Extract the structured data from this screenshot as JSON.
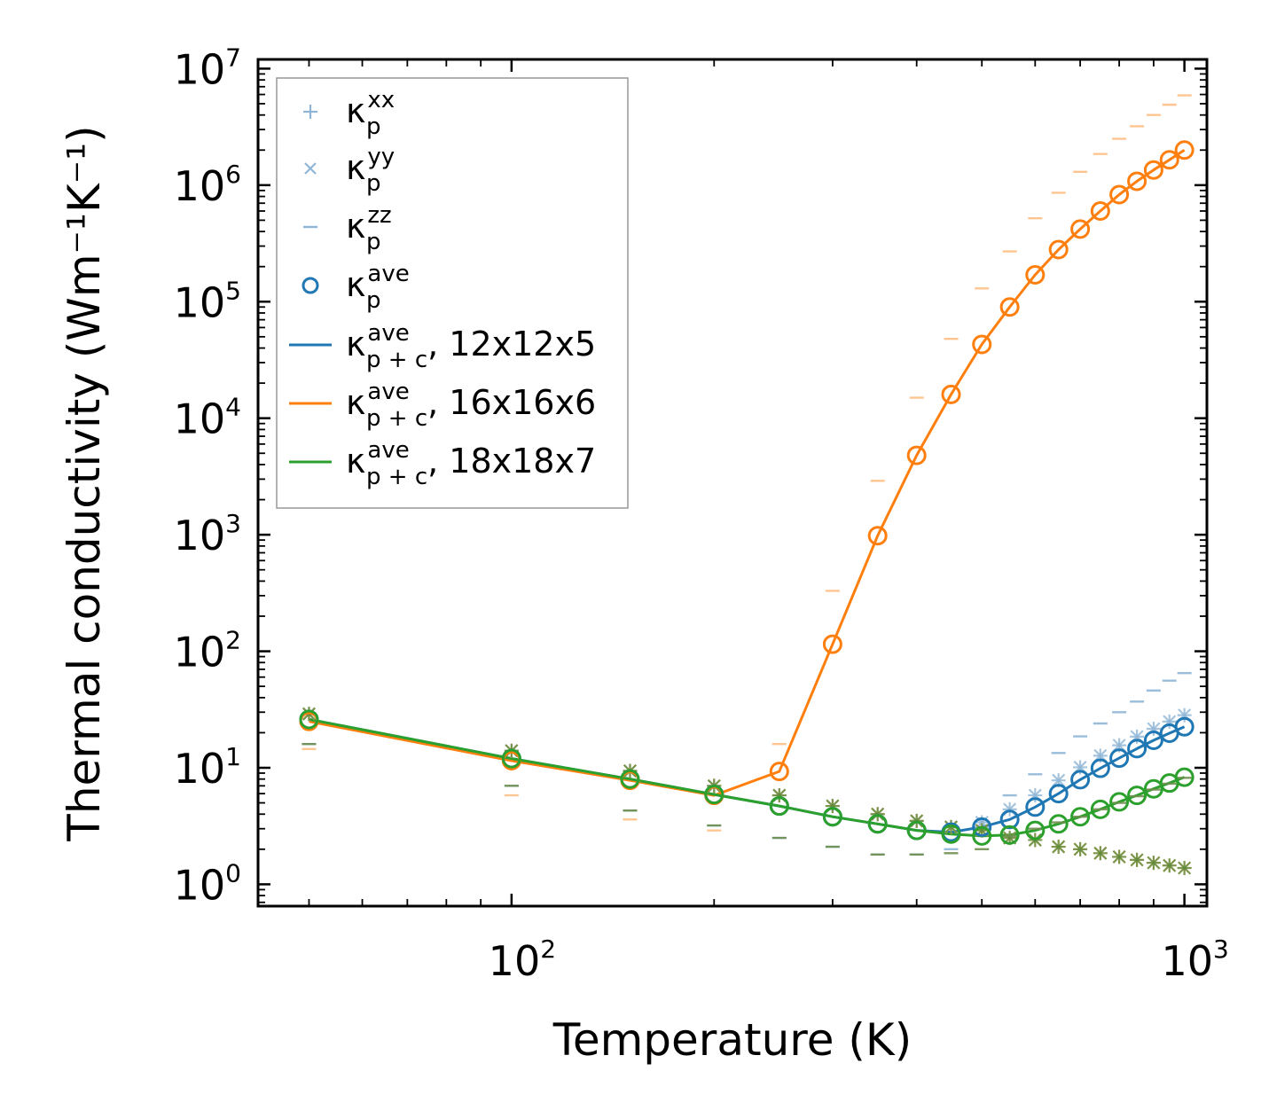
{
  "chart_data": {
    "type": "line",
    "title": "",
    "xlabel": "Temperature (K)",
    "ylabel": "Thermal conductivity (Wm⁻¹K⁻¹)",
    "xscale": "log",
    "yscale": "log",
    "xlim": [
      42,
      1080
    ],
    "ylim": [
      0.65,
      12000000
    ],
    "x_major_ticks": [
      {
        "value": 100,
        "label": "10",
        "exp": "2"
      },
      {
        "value": 1000,
        "label": "10",
        "exp": "3"
      }
    ],
    "y_major_ticks": [
      {
        "value": 1,
        "label": "10",
        "exp": "0"
      },
      {
        "value": 10,
        "label": "10",
        "exp": "1"
      },
      {
        "value": 100,
        "label": "10",
        "exp": "2"
      },
      {
        "value": 1000,
        "label": "10",
        "exp": "3"
      },
      {
        "value": 10000,
        "label": "10",
        "exp": "4"
      },
      {
        "value": 100000,
        "label": "10",
        "exp": "5"
      },
      {
        "value": 1000000,
        "label": "10",
        "exp": "6"
      },
      {
        "value": 10000000,
        "label": "10",
        "exp": "7"
      }
    ],
    "legend_position": "top-left",
    "legend": [
      {
        "marker": "plus",
        "color": "#8fb6d6",
        "kappa": "κ",
        "sub": "p",
        "sup": "xx",
        "suffix": ""
      },
      {
        "marker": "x",
        "color": "#8fb6d6",
        "kappa": "κ",
        "sub": "p",
        "sup": "yy",
        "suffix": ""
      },
      {
        "marker": "dash",
        "color": "#8fb6d6",
        "kappa": "κ",
        "sub": "p",
        "sup": "zz",
        "suffix": ""
      },
      {
        "marker": "circle",
        "color": "#1f77b4",
        "kappa": "κ",
        "sub": "p",
        "sup": "ave",
        "suffix": ""
      },
      {
        "marker": "line",
        "color": "#1f77b4",
        "kappa": "κ",
        "sub": "p + c",
        "sup": "ave",
        "suffix": ", 12x12x5"
      },
      {
        "marker": "line",
        "color": "#ff7f0e",
        "kappa": "κ",
        "sub": "p + c",
        "sup": "ave",
        "suffix": ", 16x16x6"
      },
      {
        "marker": "line",
        "color": "#2ca02c",
        "kappa": "κ",
        "sub": "p + c",
        "sup": "ave",
        "suffix": ", 18x18x7"
      }
    ],
    "series": [
      {
        "name": "12x12x5",
        "color": "#1f77b4",
        "xc": [
          50,
          100,
          150,
          200,
          250,
          300,
          350,
          400,
          450,
          500,
          550,
          600,
          650,
          700,
          750,
          800,
          850,
          900,
          950,
          1000
        ],
        "xx": [
          29,
          14,
          9.4,
          7.0,
          5.8,
          4.7,
          4.0,
          3.5,
          3.1,
          3.4,
          4.4,
          5.8,
          7.8,
          10.1,
          12.7,
          15.6,
          18.5,
          21.6,
          24.9,
          28.3
        ],
        "yy": [
          29,
          14,
          9.4,
          7.0,
          5.8,
          4.7,
          4.0,
          3.5,
          3.1,
          3.4,
          4.4,
          5.8,
          7.8,
          10.1,
          12.7,
          15.6,
          18.5,
          21.6,
          24.9,
          28.3
        ],
        "zz": [
          16,
          7,
          4.3,
          3.2,
          2.5,
          2.1,
          1.8,
          1.8,
          2.0,
          3.0,
          5.8,
          8.8,
          13.4,
          18.6,
          24,
          30,
          37,
          46,
          56,
          65
        ],
        "ave": [
          26,
          12,
          8.0,
          5.9,
          4.7,
          3.8,
          3.3,
          2.9,
          2.8,
          3.1,
          3.6,
          4.6,
          6.0,
          7.9,
          9.9,
          12.1,
          14.6,
          17.2,
          19.8,
          22.5
        ]
      },
      {
        "name": "16x16x6",
        "color": "#ff7f0e",
        "xc": [
          50,
          100,
          150,
          200,
          250,
          300,
          350,
          400,
          450,
          500,
          550,
          600,
          650,
          700,
          750,
          800,
          850,
          900,
          950,
          1000
        ],
        "xx": [
          29,
          14,
          9.4,
          7.0,
          5.8,
          4.7,
          4.0,
          3.5,
          3.1,
          2.9,
          2.5,
          2.4,
          2.1,
          2.0,
          1.85,
          1.72,
          1.62,
          1.53,
          1.45,
          1.38
        ],
        "yy": [
          29,
          14,
          9.4,
          7.0,
          5.8,
          4.7,
          4.0,
          3.5,
          3.1,
          2.9,
          2.5,
          2.4,
          2.1,
          2.0,
          1.85,
          1.72,
          1.62,
          1.53,
          1.45,
          1.38
        ],
        "zz": [
          14.5,
          5.8,
          3.6,
          2.9,
          16,
          330,
          2900,
          15000,
          48000,
          130000,
          270000,
          520000,
          860000,
          1300000,
          1850000,
          2500000,
          3200000,
          4000000,
          4900000,
          5900000
        ],
        "ave": [
          25,
          11.5,
          7.8,
          5.8,
          9.3,
          115,
          980,
          4800,
          16000,
          43000,
          90000,
          170000,
          280000,
          420000,
          600000,
          830000,
          1080000,
          1350000,
          1650000,
          2000000
        ]
      },
      {
        "name": "18x18x7",
        "color": "#2ca02c",
        "xc": [
          50,
          100,
          150,
          200,
          250,
          300,
          350,
          400,
          450,
          500,
          550,
          600,
          650,
          700,
          750,
          800,
          850,
          900,
          950,
          1000
        ],
        "xx": [
          29,
          14,
          9.4,
          7.0,
          5.8,
          4.7,
          4.0,
          3.5,
          3.1,
          2.9,
          2.5,
          2.4,
          2.1,
          2.0,
          1.85,
          1.72,
          1.62,
          1.53,
          1.45,
          1.38
        ],
        "yy": [
          29,
          14,
          9.4,
          7.0,
          5.8,
          4.7,
          4.0,
          3.5,
          3.1,
          2.9,
          2.5,
          2.4,
          2.1,
          2.0,
          1.85,
          1.72,
          1.62,
          1.53,
          1.45,
          1.38
        ],
        "zz": [
          16,
          7,
          4.3,
          3.2,
          2.5,
          2.1,
          1.8,
          1.8,
          1.85,
          2.0,
          2.6,
          3.0,
          3.4,
          3.8,
          4.4,
          5.0,
          5.7,
          6.5,
          7.3,
          8.2
        ],
        "ave": [
          26,
          12,
          8.0,
          5.9,
          4.7,
          3.8,
          3.3,
          2.9,
          2.7,
          2.6,
          2.65,
          2.9,
          3.3,
          3.8,
          4.4,
          5.1,
          5.8,
          6.6,
          7.4,
          8.3
        ]
      }
    ]
  }
}
